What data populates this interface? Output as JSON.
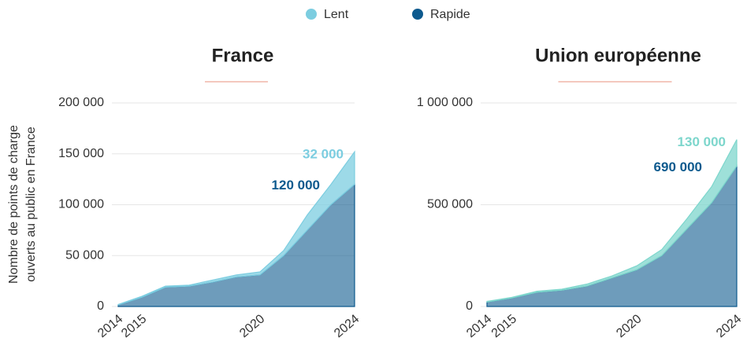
{
  "chart_data": [
    {
      "type": "stacked_area",
      "title": "France",
      "ylabel": [
        "Nombre de points de charge",
        "ouverts au public en France"
      ],
      "x": [
        2014,
        2015,
        2016,
        2017,
        2018,
        2019,
        2020,
        2021,
        2022,
        2023,
        2024
      ],
      "series": [
        {
          "name": "Rapide",
          "color": "#0d5a8e",
          "values": [
            1500,
            9000,
            19000,
            20000,
            24000,
            29000,
            31000,
            50000,
            75000,
            100000,
            120000
          ],
          "value_labels": [
            null,
            null,
            null,
            null,
            null,
            null,
            null,
            null,
            null,
            null,
            "120 000"
          ]
        },
        {
          "name": "Lent",
          "color": "#7ccde0",
          "values": [
            500,
            1000,
            1000,
            1000,
            2000,
            2000,
            3000,
            5000,
            15000,
            20000,
            32000
          ],
          "value_labels": [
            null,
            null,
            null,
            null,
            null,
            null,
            null,
            null,
            null,
            null,
            "32 000"
          ]
        }
      ],
      "xlim": [
        2014,
        2024
      ],
      "xticks": [
        2014,
        2015,
        2020,
        2024
      ],
      "ylim": [
        0,
        200000
      ],
      "yticks": [
        0,
        {
          "value": 50000,
          "label": "50 000"
        },
        {
          "value": 100000,
          "label": "100 000"
        },
        {
          "value": 150000,
          "label": "150 000"
        },
        {
          "value": 200000,
          "label": "200 000"
        }
      ],
      "grid": true
    },
    {
      "type": "stacked_area",
      "title": "Union européenne",
      "x": [
        2014,
        2015,
        2016,
        2017,
        2018,
        2019,
        2020,
        2021,
        2022,
        2023,
        2024
      ],
      "series": [
        {
          "name": "Rapide",
          "color": "#0d5a8e",
          "values": [
            22000,
            42000,
            70000,
            80000,
            100000,
            140000,
            180000,
            250000,
            380000,
            510000,
            690000
          ],
          "value_labels": [
            null,
            null,
            null,
            null,
            null,
            null,
            null,
            null,
            null,
            null,
            "690 000"
          ]
        },
        {
          "name": "Lent",
          "color": "#7dd6cc",
          "values": [
            3000,
            3000,
            5000,
            5000,
            10000,
            10000,
            20000,
            30000,
            50000,
            80000,
            130000
          ],
          "value_labels": [
            null,
            null,
            null,
            null,
            null,
            null,
            null,
            null,
            null,
            null,
            "130 000"
          ]
        }
      ],
      "xlim": [
        2014,
        2024
      ],
      "xticks": [
        2014,
        2015,
        2020,
        2024
      ],
      "ylim": [
        0,
        1000000
      ],
      "yticks": [
        0,
        {
          "value": 500000,
          "label": "500 000"
        },
        {
          "value": 1000000,
          "label": "1 000 000"
        }
      ],
      "grid": true
    }
  ]
}
